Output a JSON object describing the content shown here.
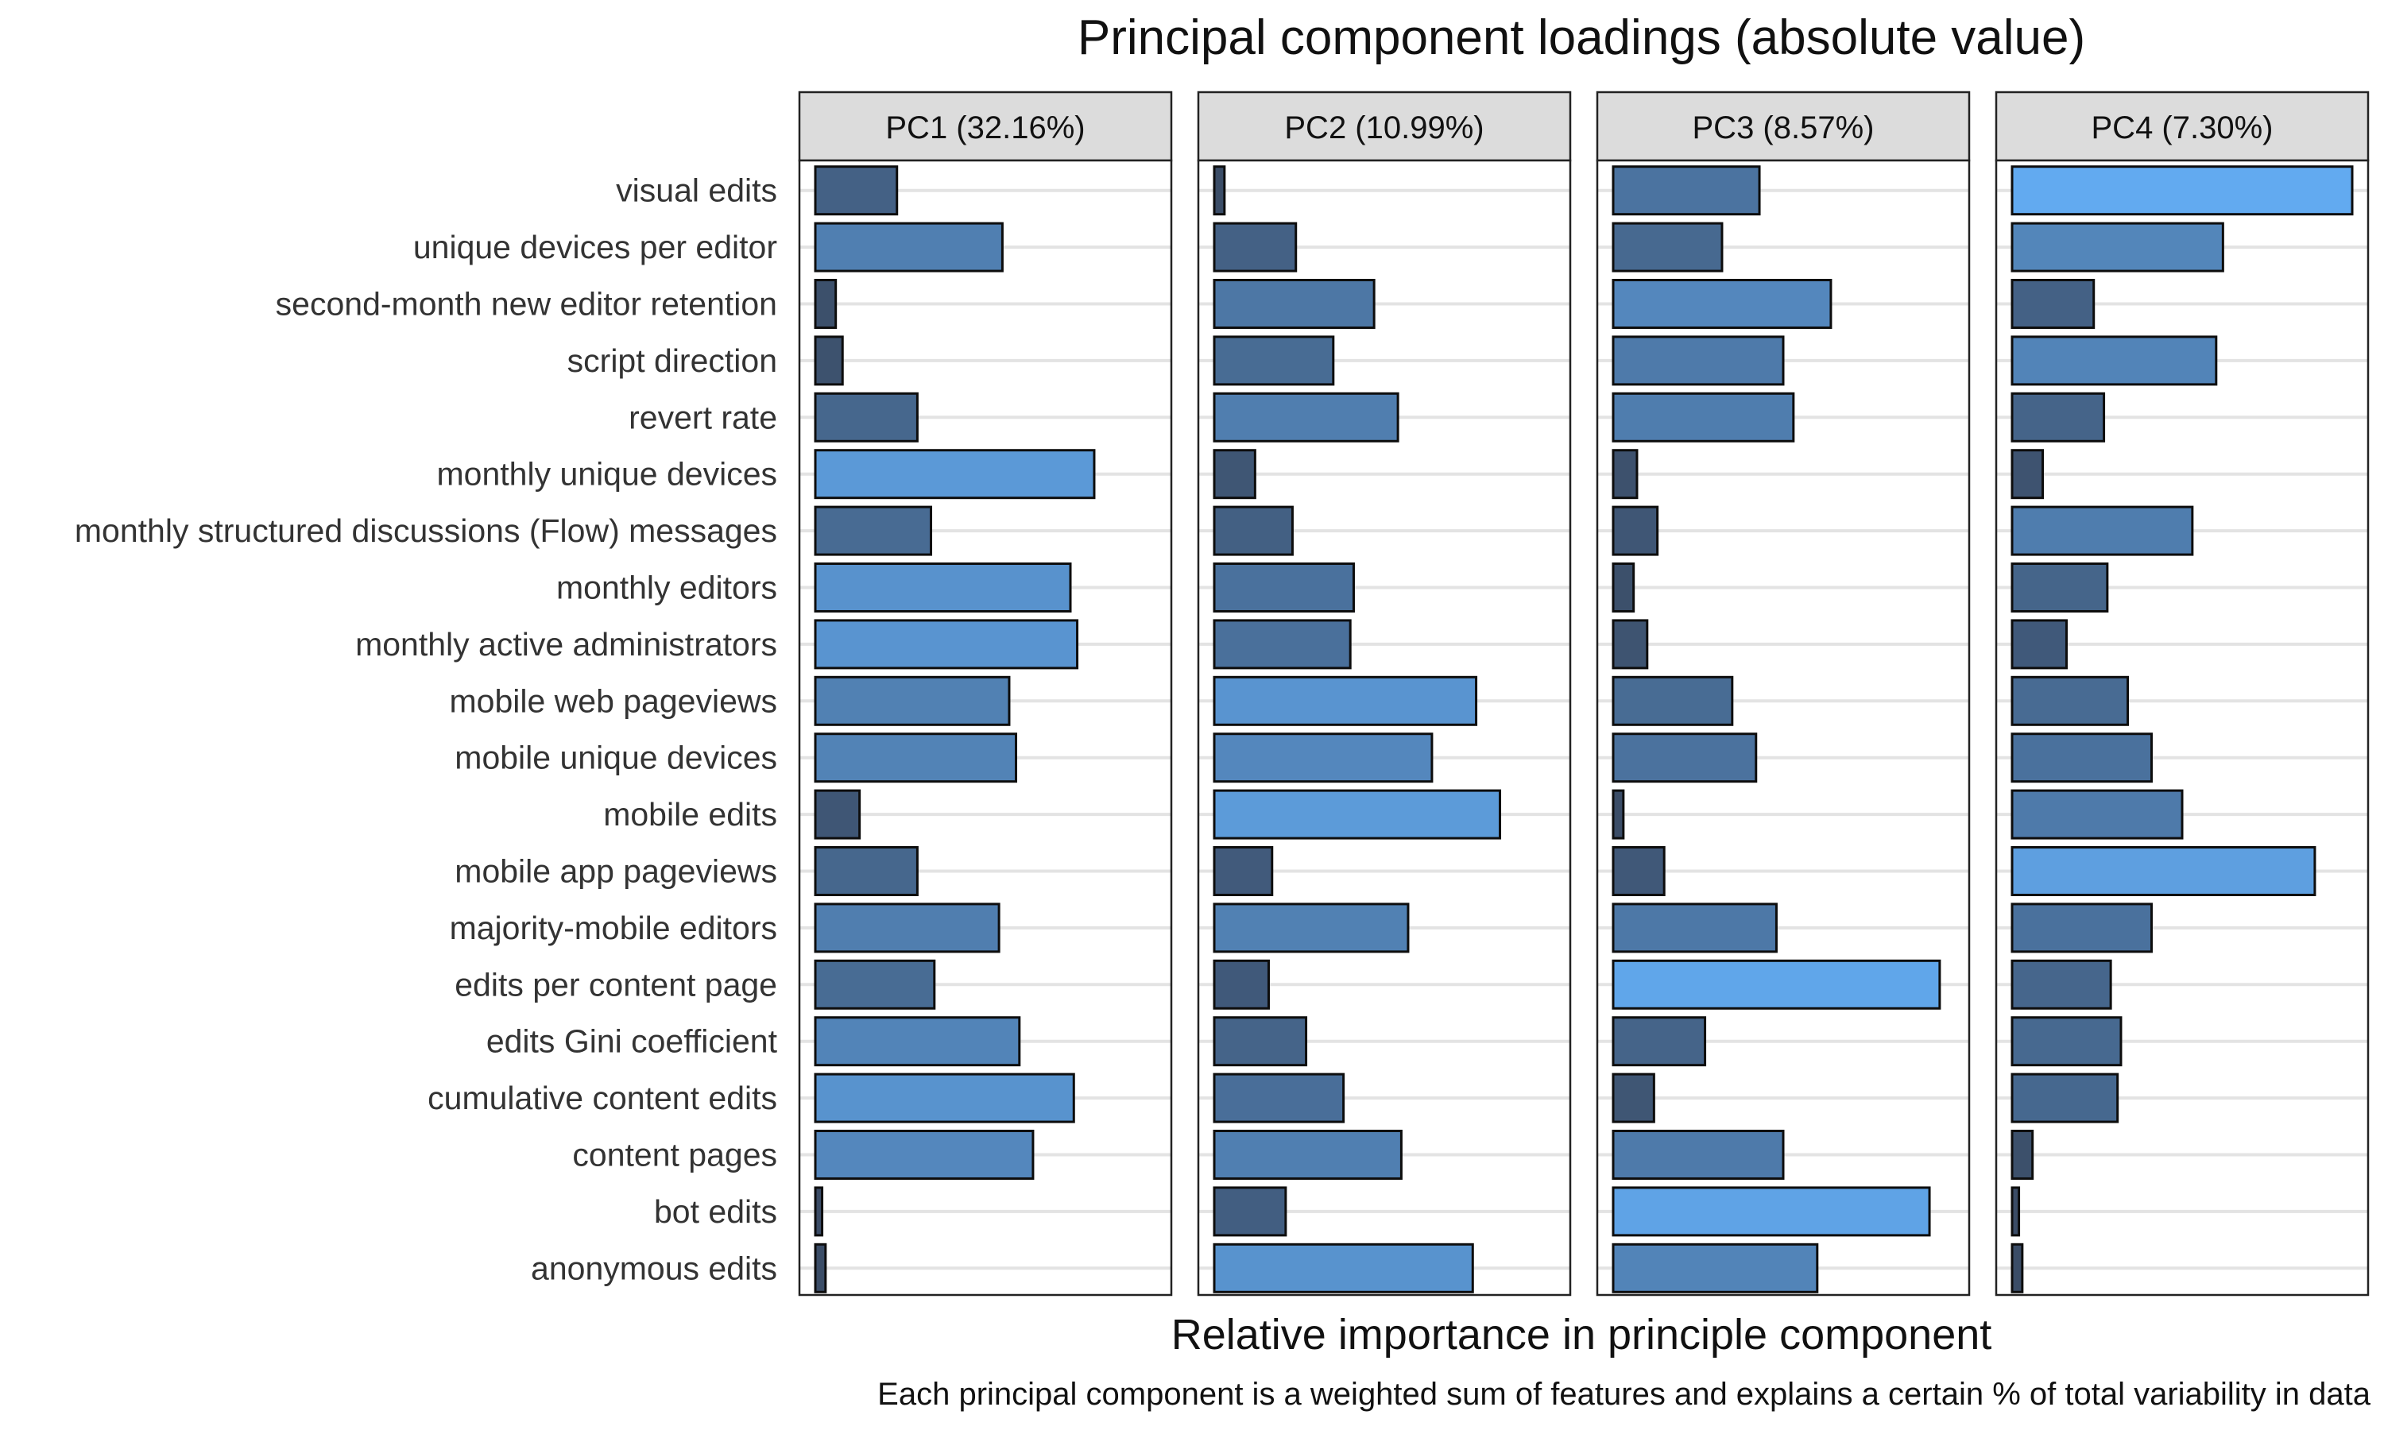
{
  "chart_data": {
    "type": "bar",
    "orientation": "horizontal",
    "title": "Principal component loadings (absolute value)",
    "xlabel": "Relative importance in principle component",
    "caption": "Each principal component is a weighted sum of features and explains a certain % of total variability in data",
    "categories": [
      "visual edits",
      "unique devices per editor",
      "second-month new editor retention",
      "script direction",
      "revert rate",
      "monthly unique devices",
      "monthly structured discussions (Flow) messages",
      "monthly editors",
      "monthly active administrators",
      "mobile web pageviews",
      "mobile unique devices",
      "mobile edits",
      "mobile app pageviews",
      "majority-mobile editors",
      "edits per content page",
      "edits Gini coefficient",
      "cumulative content edits",
      "content pages",
      "bot edits",
      "anonymous edits"
    ],
    "xlim": [
      0,
      1
    ],
    "grid": true,
    "legend": "none",
    "color_scale": {
      "low": "#3a4a63",
      "high": "#62aaf0"
    },
    "series": [
      {
        "name": "PC1 (32.16%)",
        "values": [
          0.24,
          0.55,
          0.06,
          0.08,
          0.3,
          0.82,
          0.34,
          0.75,
          0.77,
          0.57,
          0.59,
          0.13,
          0.3,
          0.54,
          0.35,
          0.6,
          0.76,
          0.64,
          0.02,
          0.03
        ]
      },
      {
        "name": "PC2 (10.99%)",
        "values": [
          0.03,
          0.24,
          0.47,
          0.35,
          0.54,
          0.12,
          0.23,
          0.41,
          0.4,
          0.77,
          0.64,
          0.84,
          0.17,
          0.57,
          0.16,
          0.27,
          0.38,
          0.55,
          0.21,
          0.76
        ]
      },
      {
        "name": "PC3 (8.57%)",
        "values": [
          0.43,
          0.32,
          0.64,
          0.5,
          0.53,
          0.07,
          0.13,
          0.06,
          0.1,
          0.35,
          0.42,
          0.03,
          0.15,
          0.48,
          0.96,
          0.27,
          0.12,
          0.5,
          0.93,
          0.6
        ]
      },
      {
        "name": "PC4 (7.30%)",
        "values": [
          1.0,
          0.62,
          0.24,
          0.6,
          0.27,
          0.09,
          0.53,
          0.28,
          0.16,
          0.34,
          0.41,
          0.5,
          0.89,
          0.41,
          0.29,
          0.32,
          0.31,
          0.06,
          0.02,
          0.03
        ]
      }
    ]
  }
}
